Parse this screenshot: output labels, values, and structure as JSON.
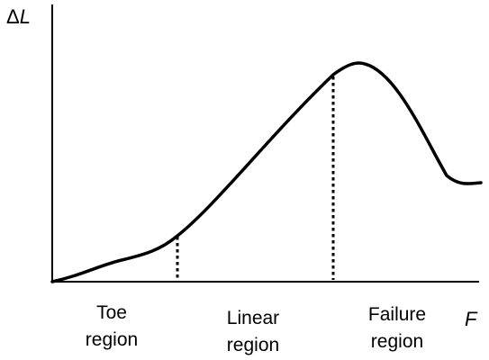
{
  "axes": {
    "y_label_symbol": "Δ",
    "y_label_var": "L",
    "x_label": "F"
  },
  "regions": [
    {
      "line1": "Toe",
      "line2": "region"
    },
    {
      "line1": "Linear",
      "line2": "region"
    },
    {
      "line1": "Failure",
      "line2": "region"
    }
  ],
  "colors": {
    "stroke": "#000000",
    "background": "#ffffff"
  }
}
